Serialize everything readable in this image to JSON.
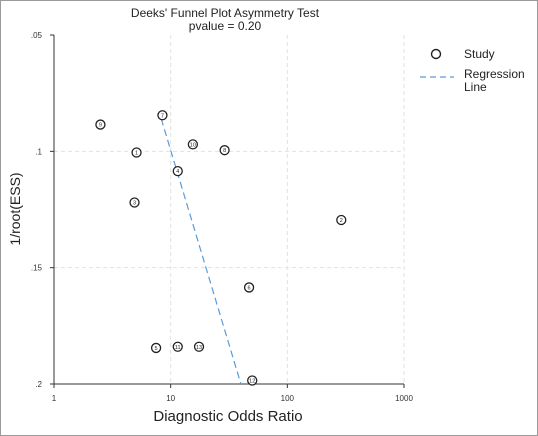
{
  "chart_data": {
    "type": "scatter",
    "title": "Deeks' Funnel Plot Asymmetry Test",
    "subtitle": "pvalue  =    0.20",
    "xlabel": "Diagnostic Odds Ratio",
    "ylabel": "1/root(ESS)",
    "x_scale": "log",
    "xlim": [
      1,
      1000
    ],
    "ylim": [
      0.05,
      0.2
    ],
    "y_reversed": true,
    "x_ticks": [
      1,
      10,
      100,
      1000
    ],
    "x_tick_labels": [
      "1",
      "10",
      "100",
      "1000"
    ],
    "y_ticks": [
      0.05,
      0.1,
      0.15,
      0.2
    ],
    "y_tick_labels": [
      ".05",
      ".1",
      ".15",
      ".2"
    ],
    "grid": true,
    "legend_position": "top-right",
    "legend": [
      {
        "label": "Study",
        "symbol": "circle"
      },
      {
        "label": "Regression\nLine",
        "symbol": "dashed-line"
      }
    ],
    "points": [
      {
        "label": "9",
        "x": 2.5,
        "y": 0.0885
      },
      {
        "label": "7",
        "x": 8.5,
        "y": 0.0845
      },
      {
        "label": "10",
        "x": 15.5,
        "y": 0.097
      },
      {
        "label": "8",
        "x": 29,
        "y": 0.0995
      },
      {
        "label": "1",
        "x": 5.1,
        "y": 0.1005
      },
      {
        "label": "4",
        "x": 11.5,
        "y": 0.1085
      },
      {
        "label": "3",
        "x": 4.9,
        "y": 0.122
      },
      {
        "label": "2",
        "x": 290,
        "y": 0.1295
      },
      {
        "label": "6",
        "x": 47,
        "y": 0.1585
      },
      {
        "label": "5",
        "x": 7.5,
        "y": 0.1845
      },
      {
        "label": "11",
        "x": 11.5,
        "y": 0.184
      },
      {
        "label": "13",
        "x": 17.5,
        "y": 0.184
      },
      {
        "label": "12",
        "x": 50,
        "y": 0.1985
      }
    ],
    "regression_line": [
      {
        "x": 8.3,
        "y": 0.086
      },
      {
        "x": 40,
        "y": 0.2
      }
    ],
    "colors": {
      "regression": "#5b9bd5",
      "grid": "#e2e2e2",
      "axis": "#333333",
      "point": "#222222"
    }
  }
}
